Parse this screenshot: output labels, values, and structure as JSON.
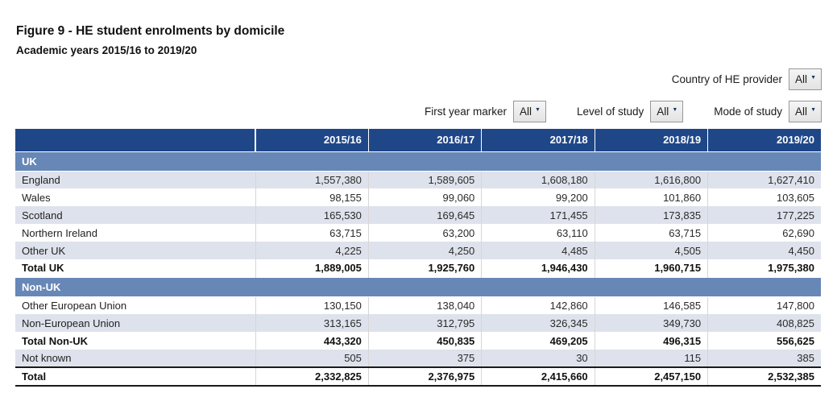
{
  "title": "Figure 9 - HE student enrolments by domicile",
  "subtitle": "Academic years 2015/16 to 2019/20",
  "icons": {
    "dropdown_arrow": "▼"
  },
  "filters": {
    "country": {
      "label": "Country of HE provider",
      "value": "All"
    },
    "first_year": {
      "label": "First year marker",
      "value": "All"
    },
    "level": {
      "label": "Level of study",
      "value": "All"
    },
    "mode": {
      "label": "Mode of study",
      "value": "All"
    }
  },
  "table": {
    "columns": [
      "2015/16",
      "2016/17",
      "2017/18",
      "2018/19",
      "2019/20"
    ],
    "rows": [
      {
        "type": "section",
        "label": "UK"
      },
      {
        "type": "data",
        "label": "England",
        "values": [
          "1,557,380",
          "1,589,605",
          "1,608,180",
          "1,616,800",
          "1,627,410"
        ]
      },
      {
        "type": "data",
        "label": "Wales",
        "values": [
          "98,155",
          "99,060",
          "99,200",
          "101,860",
          "103,605"
        ]
      },
      {
        "type": "data",
        "label": "Scotland",
        "values": [
          "165,530",
          "169,645",
          "171,455",
          "173,835",
          "177,225"
        ]
      },
      {
        "type": "data",
        "label": "Northern Ireland",
        "values": [
          "63,715",
          "63,200",
          "63,110",
          "63,715",
          "62,690"
        ]
      },
      {
        "type": "data",
        "label": "Other UK",
        "values": [
          "4,225",
          "4,250",
          "4,485",
          "4,505",
          "4,450"
        ]
      },
      {
        "type": "total",
        "label": "Total UK",
        "values": [
          "1,889,005",
          "1,925,760",
          "1,946,430",
          "1,960,715",
          "1,975,380"
        ]
      },
      {
        "type": "section",
        "label": "Non-UK"
      },
      {
        "type": "data",
        "label": "Other European Union",
        "values": [
          "130,150",
          "138,040",
          "142,860",
          "146,585",
          "147,800"
        ]
      },
      {
        "type": "data",
        "label": "Non-European Union",
        "values": [
          "313,165",
          "312,795",
          "326,345",
          "349,730",
          "408,825"
        ]
      },
      {
        "type": "total",
        "label": "Total Non-UK",
        "values": [
          "443,320",
          "450,835",
          "469,205",
          "496,315",
          "556,625"
        ]
      },
      {
        "type": "data",
        "label": "Not known",
        "values": [
          "505",
          "375",
          "30",
          "115",
          "385"
        ]
      },
      {
        "type": "grand_total",
        "label": "Total",
        "values": [
          "2,332,825",
          "2,376,975",
          "2,415,660",
          "2,457,150",
          "2,532,385"
        ]
      }
    ]
  },
  "chart_data": {
    "type": "table",
    "title": "Figure 9 - HE student enrolments by domicile",
    "subtitle": "Academic years 2015/16 to 2019/20",
    "columns": [
      "2015/16",
      "2016/17",
      "2017/18",
      "2018/19",
      "2019/20"
    ],
    "series": [
      {
        "name": "England",
        "values": [
          1557380,
          1589605,
          1608180,
          1616800,
          1627410
        ]
      },
      {
        "name": "Wales",
        "values": [
          98155,
          99060,
          99200,
          101860,
          103605
        ]
      },
      {
        "name": "Scotland",
        "values": [
          165530,
          169645,
          171455,
          173835,
          177225
        ]
      },
      {
        "name": "Northern Ireland",
        "values": [
          63715,
          63200,
          63110,
          63715,
          62690
        ]
      },
      {
        "name": "Other UK",
        "values": [
          4225,
          4250,
          4485,
          4505,
          4450
        ]
      },
      {
        "name": "Total UK",
        "values": [
          1889005,
          1925760,
          1946430,
          1960715,
          1975380
        ]
      },
      {
        "name": "Other European Union",
        "values": [
          130150,
          138040,
          142860,
          146585,
          147800
        ]
      },
      {
        "name": "Non-European Union",
        "values": [
          313165,
          312795,
          326345,
          349730,
          408825
        ]
      },
      {
        "name": "Total Non-UK",
        "values": [
          443320,
          450835,
          469205,
          496315,
          556625
        ]
      },
      {
        "name": "Not known",
        "values": [
          505,
          375,
          30,
          115,
          385
        ]
      },
      {
        "name": "Total",
        "values": [
          2332825,
          2376975,
          2415660,
          2457150,
          2532385
        ]
      }
    ]
  },
  "colors": {
    "header_bg": "#1F4788",
    "section_bg": "#6787B7",
    "row_shade_bg": "#DEE2EC",
    "dropdown_arrow": "#17375E"
  }
}
